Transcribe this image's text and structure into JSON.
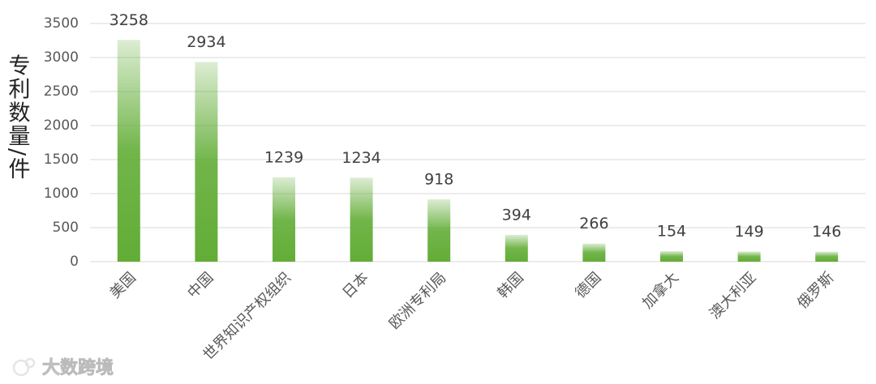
{
  "chart_data": {
    "type": "bar",
    "y_axis_label": "专利数量/件",
    "categories": [
      "美国",
      "中国",
      "世界知识产权组织",
      "日本",
      "欧洲专利局",
      "韩国",
      "德国",
      "加拿大",
      "澳大利亚",
      "俄罗斯"
    ],
    "values": [
      3258,
      2934,
      1239,
      1234,
      918,
      394,
      266,
      154,
      149,
      146
    ],
    "color": "#62ad36",
    "ylim": [
      0,
      3500
    ],
    "yticks": [
      0,
      500,
      1000,
      1500,
      2000,
      2500,
      3000,
      3500
    ],
    "grid": true
  },
  "watermark": "大数跨境"
}
